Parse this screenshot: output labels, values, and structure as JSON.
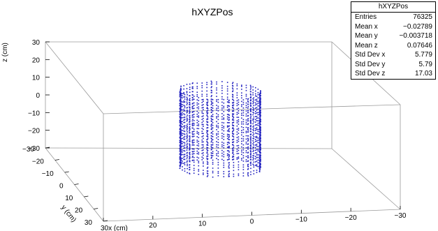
{
  "chart_data": {
    "type": "scatter3d",
    "title": "hXYZPos",
    "axes": {
      "x": {
        "label": "x (cm)",
        "range": [
          -30,
          30
        ],
        "ticks": [
          30,
          20,
          10,
          0,
          -10,
          -20,
          -30
        ]
      },
      "y": {
        "label": "y (cm)",
        "range": [
          -30,
          30
        ],
        "ticks": [
          -30,
          -20,
          -10,
          0,
          10,
          20,
          30
        ]
      },
      "z": {
        "label": "z (cm)",
        "range": [
          -30,
          30
        ],
        "ticks": [
          -30,
          -20,
          -10,
          0,
          10,
          20,
          30
        ]
      }
    },
    "marker_color": "#1f1fbf",
    "structure": {
      "shape": "cylinder of vertical strips",
      "radius_cm": 8,
      "z_range_cm": [
        -22,
        22
      ],
      "strip_count": 12
    },
    "stats": {
      "title": "hXYZPos",
      "rows": [
        {
          "label": "Entries",
          "value": "76325"
        },
        {
          "label": "Mean x",
          "value": "−0.02789"
        },
        {
          "label": "Mean y",
          "value": "−0.003718"
        },
        {
          "label": "Mean z",
          "value": "0.07646"
        },
        {
          "label": "Std Dev x",
          "value": "5.779"
        },
        {
          "label": "Std Dev y",
          "value": "5.79"
        },
        {
          "label": "Std Dev z",
          "value": "17.03"
        }
      ]
    }
  }
}
